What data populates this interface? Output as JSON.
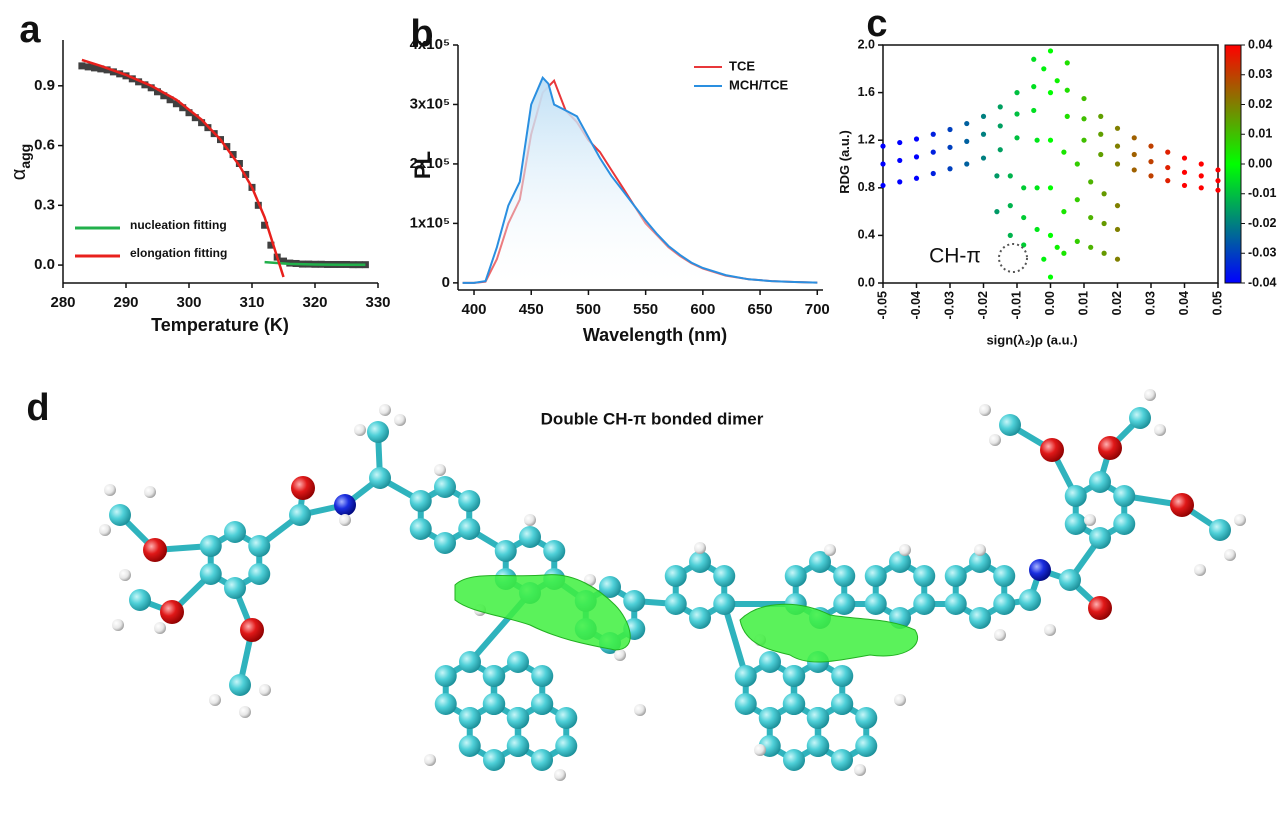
{
  "chart_data": [
    {
      "label": "a",
      "type": "line",
      "xlabel": "Temperature (K)",
      "ylabel": "α",
      "ylabel_sub": "agg",
      "xlim": [
        280,
        330
      ],
      "xticks": [
        280,
        290,
        300,
        310,
        320,
        330
      ],
      "ylim": [
        -0.09,
        1.13
      ],
      "yticks": [
        {
          "value": 0,
          "label": "0.0"
        },
        0.3,
        0.6,
        0.9
      ],
      "series": [
        {
          "color": "#404040",
          "marker": "square",
          "x": [
            283,
            284,
            285,
            286,
            287,
            288,
            289,
            290,
            291,
            292,
            293,
            294,
            295,
            296,
            297,
            298,
            299,
            300,
            301,
            302,
            303,
            304,
            305,
            306,
            307,
            308,
            309,
            310,
            311,
            312,
            313,
            314,
            315,
            316,
            317,
            318,
            319,
            320,
            321,
            322,
            323,
            324,
            325,
            326,
            327,
            328
          ],
          "values": [
            1.0,
            0.995,
            0.99,
            0.985,
            0.98,
            0.97,
            0.96,
            0.95,
            0.935,
            0.92,
            0.905,
            0.89,
            0.87,
            0.85,
            0.83,
            0.81,
            0.79,
            0.765,
            0.74,
            0.715,
            0.69,
            0.66,
            0.63,
            0.595,
            0.555,
            0.51,
            0.455,
            0.39,
            0.3,
            0.2,
            0.1,
            0.04,
            0.02,
            0.01,
            0.008,
            0.005,
            0.005,
            0.004,
            0.004,
            0.003,
            0.003,
            0.003,
            0.003,
            0.002,
            0.002,
            0.002
          ]
        },
        {
          "name": "nucleation fitting",
          "color": "#22b04b",
          "x": [
            312,
            316,
            320,
            324,
            328
          ],
          "values": [
            0.015,
            0.006,
            0.003,
            0.002,
            0.002
          ]
        },
        {
          "name": "elongation fitting",
          "color": "#e8201c",
          "x": [
            283,
            286,
            290,
            294,
            298,
            302,
            305,
            308,
            310,
            312,
            314,
            315
          ],
          "values": [
            1.03,
            1.0,
            0.955,
            0.9,
            0.83,
            0.73,
            0.63,
            0.5,
            0.39,
            0.24,
            0.04,
            -0.06
          ]
        }
      ]
    },
    {
      "label": "b",
      "type": "line",
      "xlabel": "Wavelength (nm)",
      "ylabel": "PL",
      "xlim": [
        386,
        705
      ],
      "xticks": [
        400,
        450,
        500,
        550,
        600,
        650,
        700
      ],
      "ylim": [
        -12000,
        400000
      ],
      "yticks": [
        0,
        {
          "value": 100000,
          "label": "1x10⁵"
        },
        {
          "value": 200000,
          "label": "2x10⁵"
        },
        {
          "value": 300000,
          "label": "3x10⁵"
        },
        {
          "value": 400000,
          "label": "4x10⁵"
        }
      ],
      "x": [
        390,
        400,
        410,
        420,
        430,
        440,
        450,
        460,
        465,
        470,
        480,
        490,
        500,
        510,
        520,
        530,
        540,
        550,
        560,
        570,
        580,
        590,
        600,
        620,
        640,
        660,
        680,
        700
      ],
      "series": [
        {
          "name": "TCE",
          "color": "#e8373a",
          "values": [
            0,
            0,
            2000,
            40000,
            100000,
            140000,
            250000,
            320000,
            330000,
            340000,
            290000,
            270000,
            240000,
            220000,
            190000,
            160000,
            130000,
            100000,
            80000,
            60000,
            45000,
            33000,
            24000,
            12000,
            6000,
            3000,
            1500,
            500
          ]
        },
        {
          "name": "MCH/TCE",
          "color": "#2a8fe0",
          "fill": "#bfdff5",
          "values": [
            0,
            0,
            3000,
            60000,
            130000,
            170000,
            300000,
            345000,
            335000,
            300000,
            290000,
            280000,
            245000,
            210000,
            180000,
            155000,
            130000,
            105000,
            82000,
            62000,
            47000,
            34000,
            25000,
            13000,
            6000,
            3000,
            1500,
            500
          ]
        }
      ]
    },
    {
      "label": "c",
      "type": "scatter",
      "xlabel": "sign(λ₂)ρ (a.u.)",
      "ylabel": "RDG (a.u.)",
      "annotation": "CH-π",
      "xlim": [
        -0.05,
        0.05
      ],
      "xticks": [
        -0.05,
        -0.04,
        -0.03,
        -0.02,
        -0.01,
        {
          "value": 0,
          "label": "0.00"
        },
        0.01,
        0.02,
        0.03,
        0.04,
        0.05
      ],
      "ylim": [
        0,
        2
      ],
      "yticks": [
        {
          "value": 0,
          "label": "0.0"
        },
        0.4,
        0.8,
        1.2,
        1.6,
        {
          "value": 2,
          "label": "2.0"
        }
      ],
      "colorscale": {
        "colors": [
          "#0000ff",
          "#00ff00",
          "#ff0000"
        ],
        "lim": [
          -0.04,
          0.04
        ],
        "ticks": [
          -0.04,
          -0.03,
          -0.02,
          -0.01,
          {
            "value": 0,
            "label": "0.00"
          },
          0.01,
          0.02,
          0.03,
          0.04
        ]
      },
      "x": [
        -0.05,
        -0.05,
        -0.05,
        -0.045,
        -0.045,
        -0.045,
        -0.04,
        -0.04,
        -0.04,
        -0.035,
        -0.035,
        -0.035,
        -0.03,
        -0.03,
        -0.03,
        -0.025,
        -0.025,
        -0.025,
        -0.02,
        -0.02,
        -0.02,
        -0.015,
        -0.015,
        -0.015,
        -0.01,
        -0.01,
        -0.01,
        -0.005,
        -0.005,
        -0.005,
        0.005,
        0.005,
        0.005,
        0.01,
        0.01,
        0.01,
        0.015,
        0.015,
        0.015,
        0.02,
        0.02,
        0.02,
        0.025,
        0.025,
        0.025,
        0.03,
        0.03,
        0.03,
        0.035,
        0.035,
        0.035,
        0.04,
        0.04,
        0.04,
        0.045,
        0.045,
        0.045,
        0.05,
        0.05,
        0.05,
        -0.012,
        -0.012,
        -0.012,
        -0.008,
        -0.008,
        -0.008,
        -0.004,
        -0.004,
        -0.004,
        0,
        0,
        0,
        0,
        0,
        0,
        0.004,
        0.004,
        0.004,
        0.008,
        0.008,
        0.008,
        0.012,
        0.012,
        0.012,
        0.016,
        0.016,
        0.016,
        0.02,
        0.02,
        0.02,
        -0.016,
        -0.016,
        0.002,
        0.002,
        -0.002,
        -0.002
      ],
      "values": [
        0.82,
        1.0,
        1.15,
        0.85,
        1.03,
        1.18,
        0.88,
        1.06,
        1.21,
        0.92,
        1.1,
        1.25,
        0.96,
        1.14,
        1.29,
        1.0,
        1.19,
        1.34,
        1.05,
        1.25,
        1.4,
        1.12,
        1.32,
        1.48,
        1.22,
        1.42,
        1.6,
        1.45,
        1.65,
        1.88,
        1.4,
        1.62,
        1.85,
        1.2,
        1.38,
        1.55,
        1.08,
        1.25,
        1.4,
        1.0,
        1.15,
        1.3,
        0.95,
        1.08,
        1.22,
        0.9,
        1.02,
        1.15,
        0.86,
        0.97,
        1.1,
        0.82,
        0.93,
        1.05,
        0.8,
        0.9,
        1.0,
        0.78,
        0.86,
        0.95,
        0.4,
        0.65,
        0.9,
        0.32,
        0.55,
        0.8,
        0.45,
        0.8,
        1.2,
        0.05,
        0.4,
        0.8,
        1.2,
        1.6,
        1.95,
        0.25,
        0.6,
        1.1,
        0.35,
        0.7,
        1.0,
        0.3,
        0.55,
        0.85,
        0.25,
        0.5,
        0.75,
        0.2,
        0.45,
        0.65,
        0.6,
        0.9,
        0.3,
        1.7,
        0.2,
        1.8
      ]
    }
  ],
  "molecule_panel": {
    "label": "d",
    "title": "Double CH-π bonded dimer"
  }
}
